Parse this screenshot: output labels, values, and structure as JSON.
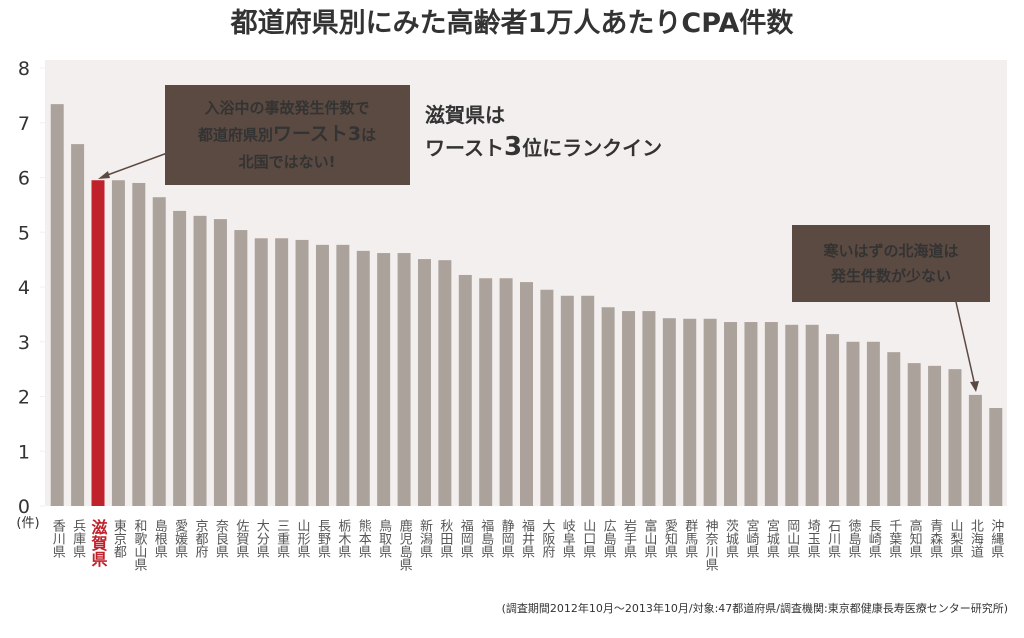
{
  "chart_data": {
    "type": "bar",
    "title": "都道府県別にみた高齢者1万人あたりCPA件数",
    "y_unit": "(件)",
    "categories": [
      "香川県",
      "兵庫県",
      "滋賀県",
      "東京都",
      "和歌山県",
      "島根県",
      "愛媛県",
      "京都府",
      "奈良県",
      "佐賀県",
      "大分県",
      "三重県",
      "山形県",
      "長野県",
      "栃木県",
      "熊本県",
      "鳥取県",
      "鹿児島県",
      "新潟県",
      "秋田県",
      "福岡県",
      "福島県",
      "静岡県",
      "福井県",
      "大阪府",
      "岐阜県",
      "山口県",
      "広島県",
      "岩手県",
      "富山県",
      "愛知県",
      "群馬県",
      "神奈川県",
      "茨城県",
      "宮崎県",
      "宮城県",
      "岡山県",
      "埼玉県",
      "石川県",
      "徳島県",
      "長崎県",
      "千葉県",
      "高知県",
      "青森県",
      "山梨県",
      "北海道",
      "沖縄県"
    ],
    "values": [
      7.34,
      6.61,
      5.95,
      5.95,
      5.9,
      5.64,
      5.39,
      5.3,
      5.24,
      5.04,
      4.89,
      4.89,
      4.86,
      4.77,
      4.77,
      4.66,
      4.62,
      4.62,
      4.51,
      4.49,
      4.22,
      4.16,
      4.16,
      4.09,
      3.95,
      3.84,
      3.84,
      3.63,
      3.56,
      3.56,
      3.43,
      3.42,
      3.42,
      3.36,
      3.36,
      3.36,
      3.31,
      3.31,
      3.14,
      3.0,
      3.0,
      2.81,
      2.61,
      2.56,
      2.5,
      2.03,
      1.79
    ],
    "color": "#aca29c",
    "highlight_category": "滋賀県",
    "highlight_color": "#c0222b",
    "ylim": [
      0,
      8
    ],
    "yticks": [
      0,
      1,
      2,
      3,
      4,
      5,
      6,
      7,
      8
    ],
    "annotations": [
      {
        "lines": [
          "入浴中の事故発生件数で",
          [
            "都道府県別",
            "ワースト3",
            "は"
          ],
          "北国ではない!"
        ]
      },
      {
        "lines": [
          "滋賀県は",
          [
            "ワースト",
            "3",
            "位にランクイン"
          ]
        ]
      },
      {
        "lines": [
          "寒いはずの北海道は",
          "発生件数が少ない"
        ]
      }
    ],
    "source": "(調査期間2012年10月〜2013年10月/対象:47都道府県/調査機関:東京都健康長寿医療センター研究所)"
  }
}
